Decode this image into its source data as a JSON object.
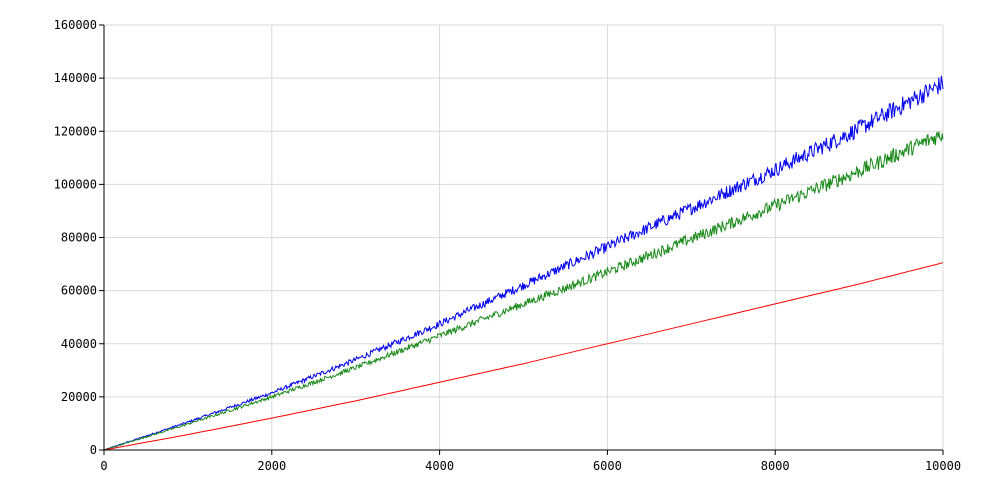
{
  "chart_data": {
    "type": "line",
    "title": "",
    "xlabel": "",
    "ylabel": "",
    "xlim": [
      0,
      10000
    ],
    "ylim": [
      0,
      160000
    ],
    "grid": true,
    "x_ticks": [
      0,
      2000,
      4000,
      6000,
      8000,
      10000
    ],
    "x_tick_labels": [
      "0",
      "2000",
      "4000",
      "6000",
      "8000",
      "10000"
    ],
    "y_ticks": [
      0,
      20000,
      40000,
      60000,
      80000,
      100000,
      120000,
      140000,
      160000
    ],
    "y_tick_labels": [
      "0",
      "20000",
      "40000",
      "60000",
      "80000",
      "100000",
      "120000",
      "140000",
      "160000"
    ],
    "series": [
      {
        "color": "#0000ee",
        "noisy": true,
        "x": [
          0,
          1000,
          2000,
          3000,
          4000,
          5000,
          6000,
          7000,
          8000,
          9000,
          10000
        ],
        "y": [
          0,
          10500,
          21500,
          34000,
          47500,
          62000,
          76500,
          91000,
          105500,
          121000,
          138000
        ]
      },
      {
        "color": "#1a8a1a",
        "noisy": true,
        "x": [
          0,
          1000,
          2000,
          3000,
          4000,
          5000,
          6000,
          7000,
          8000,
          9000,
          10000
        ],
        "y": [
          0,
          9800,
          20000,
          31000,
          43000,
          55000,
          67000,
          79500,
          92000,
          105000,
          119000
        ]
      },
      {
        "color": "#ff0000",
        "noisy": false,
        "x": [
          0,
          1000,
          2000,
          3000,
          4000,
          5000,
          6000,
          7000,
          8000,
          9000,
          10000
        ],
        "y": [
          0,
          5800,
          12000,
          18500,
          25500,
          32500,
          40000,
          47500,
          55000,
          62500,
          70500
        ]
      }
    ]
  }
}
